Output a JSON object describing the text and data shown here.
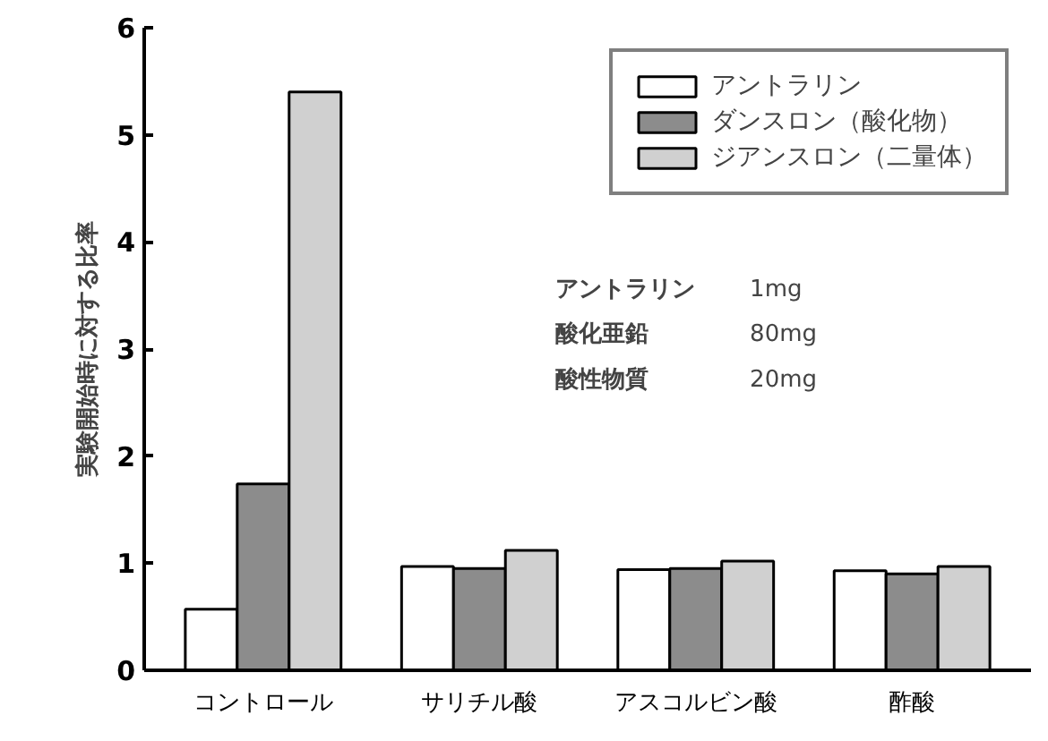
{
  "chart_data": {
    "type": "bar",
    "ylabel": "実験開始時に対する比率",
    "categories": [
      "コントロール",
      "サリチル酸",
      "アスコルビン酸",
      "酢酸"
    ],
    "series": [
      {
        "name": "アントラリン",
        "color": "#ffffff",
        "values": [
          0.57,
          0.97,
          0.94,
          0.93
        ]
      },
      {
        "name": "ダンスロン（酸化物）",
        "color": "#8c8c8c",
        "values": [
          1.74,
          0.95,
          0.95,
          0.9
        ]
      },
      {
        "name": "ジアンスロン（二量体）",
        "color": "#d0d0d0",
        "values": [
          5.4,
          1.12,
          1.02,
          0.97
        ]
      }
    ],
    "ylim": [
      0,
      6
    ],
    "yticks": [
      0,
      1,
      2,
      3,
      4,
      5,
      6
    ],
    "grid": false,
    "legend": "top right",
    "annotations": [
      "アントラリン",
      "1mg",
      "酸化亜鉛",
      "80mg",
      "酸性物質",
      "20mg"
    ]
  }
}
